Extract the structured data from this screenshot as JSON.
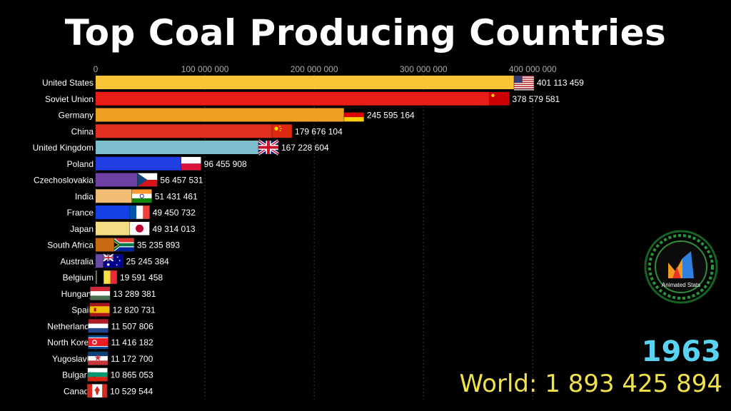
{
  "title": "Top Coal Producing Countries",
  "year": "1963",
  "world": {
    "label": "World:",
    "value": "1 893 425 894"
  },
  "logo_text": "Animated Stats",
  "chart_data": {
    "type": "bar",
    "orientation": "horizontal",
    "title": "Top Coal Producing Countries",
    "xlim": [
      0,
      401113459
    ],
    "xticks": [
      0,
      100000000,
      200000000,
      300000000,
      400000000
    ],
    "xtick_labels": [
      "0",
      "100 000 000",
      "200 000 000",
      "300 000 000",
      "400 000 000"
    ],
    "grid": true,
    "categories": [
      "United States",
      "Soviet Union",
      "Germany",
      "China",
      "United Kingdom",
      "Poland",
      "Czechoslovakia",
      "India",
      "France",
      "Japan",
      "South Africa",
      "Australia",
      "Belgium",
      "Hungary",
      "Spain",
      "Netherlands",
      "North Korea",
      "Yugoslavia",
      "Bulgaria",
      "Canada"
    ],
    "values": [
      401113459,
      378579581,
      245595164,
      179676104,
      167228604,
      96455908,
      56457531,
      51431461,
      49450732,
      49314013,
      35235893,
      25245384,
      19591458,
      13289381,
      12820731,
      11507806,
      11416182,
      11172700,
      10865053,
      10529544
    ],
    "value_labels": [
      "401 113 459",
      "378 579 581",
      "245 595 164",
      "179 676 104",
      "167 228 604",
      "96 455 908",
      "56 457 531",
      "51 431 461",
      "49 450 732",
      "49 314 013",
      "35 235 893",
      "25 245 384",
      "19 591 458",
      "13 289 381",
      "12 820 731",
      "11 507 806",
      "11 416 182",
      "11 172 700",
      "10 865 053",
      "10 529 544"
    ],
    "colors": [
      "#f7c435",
      "#ea1c18",
      "#f0a020",
      "#e22f1f",
      "#7ebdcb",
      "#1f3de0",
      "#6e3fa4",
      "#f1bd74",
      "#1540e8",
      "#f3dd84",
      "#c86a14",
      "#6b49a8",
      "#77735f",
      "#717766",
      "#e43ce6",
      "#7c1830",
      "#e8821c",
      "#7a1c4c",
      "#c0c0c0",
      "#15806e"
    ],
    "flags": [
      "us",
      "su",
      "de",
      "cn",
      "gb",
      "pl",
      "cz",
      "in",
      "fr",
      "jp",
      "za",
      "au",
      "be",
      "hu",
      "es",
      "nl",
      "kp",
      "yu",
      "bg",
      "ca"
    ]
  }
}
